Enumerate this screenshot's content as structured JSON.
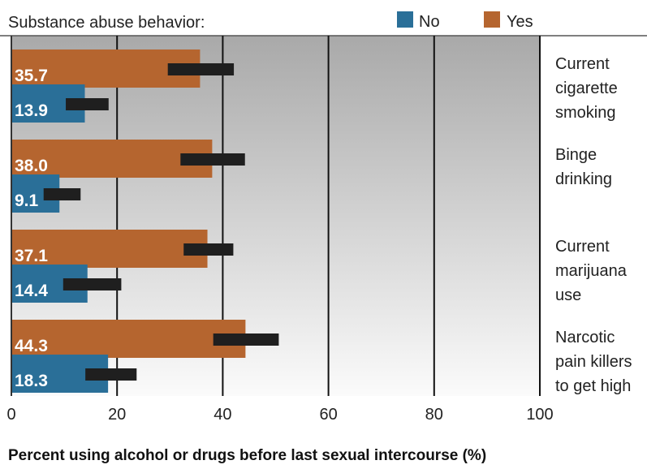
{
  "chart_data": {
    "type": "bar",
    "orientation": "horizontal",
    "title": "Substance abuse behavior:",
    "xlabel": "Percent using alcohol or drugs before last sexual intercourse (%)",
    "xlim": [
      0,
      100
    ],
    "xticks": [
      0,
      20,
      40,
      60,
      80,
      100
    ],
    "grid": true,
    "legend_position": "top",
    "categories": [
      [
        "Current",
        "cigarette",
        "smoking"
      ],
      [
        "Binge",
        "drinking"
      ],
      [
        "Current",
        "marijuana",
        "use"
      ],
      [
        "Narcotic",
        "pain killers",
        "to get high"
      ]
    ],
    "series": [
      {
        "name": "No",
        "color": "#2a6f98",
        "values": [
          13.9,
          9.1,
          14.4,
          18.3
        ],
        "value_labels": [
          "13.9",
          "9.1",
          "14.4",
          "18.3"
        ],
        "ci": [
          [
            10.3,
            18.4
          ],
          [
            6.1,
            13.1
          ],
          [
            9.8,
            20.8
          ],
          [
            14.0,
            23.7
          ]
        ]
      },
      {
        "name": "Yes",
        "color": "#b5652f",
        "values": [
          35.7,
          38.0,
          37.1,
          44.3
        ],
        "value_labels": [
          "35.7",
          "38.0",
          "37.1",
          "44.3"
        ],
        "ci": [
          [
            29.6,
            42.1
          ],
          [
            32.0,
            44.2
          ],
          [
            32.6,
            42.0
          ],
          [
            38.2,
            50.6
          ]
        ]
      }
    ]
  }
}
